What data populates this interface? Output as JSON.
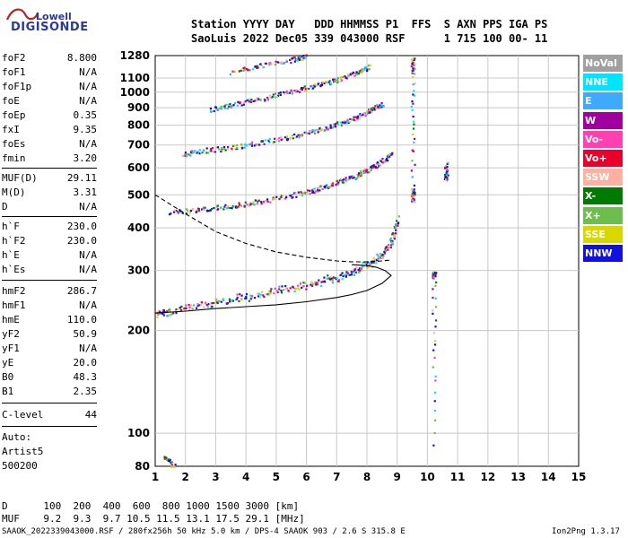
{
  "logo": {
    "top": "Lowell",
    "bottom": "DIGISONDE"
  },
  "header": {
    "line1": "Station YYYY DAY   DDD HHMMSS P1  FFS  S AXN PPS IGA PS",
    "line2": "SaoLuis 2022 Dec05 339 043000 RSF      1 715 100 00- 11"
  },
  "params": [
    {
      "label": "foF2",
      "value": "8.800"
    },
    {
      "label": "foF1",
      "value": "N/A"
    },
    {
      "label": "foF1p",
      "value": "N/A"
    },
    {
      "label": "foE",
      "value": "N/A"
    },
    {
      "label": "foEp",
      "value": "0.35"
    },
    {
      "label": "fxI",
      "value": "9.35"
    },
    {
      "label": "foEs",
      "value": "N/A"
    },
    {
      "label": "fmin",
      "value": "3.20"
    },
    {
      "label": "MUF(D)",
      "value": "29.11"
    },
    {
      "label": "M(D)",
      "value": "3.31"
    },
    {
      "label": "D",
      "value": "N/A"
    },
    {
      "label": "h`F",
      "value": "230.0"
    },
    {
      "label": "h`F2",
      "value": "230.0"
    },
    {
      "label": "h`E",
      "value": "N/A"
    },
    {
      "label": "h`Es",
      "value": "N/A"
    },
    {
      "label": "hmF2",
      "value": "286.7"
    },
    {
      "label": "hmF1",
      "value": "N/A"
    },
    {
      "label": "hmE",
      "value": "110.0"
    },
    {
      "label": "yF2",
      "value": "50.9"
    },
    {
      "label": "yF1",
      "value": "N/A"
    },
    {
      "label": "yE",
      "value": "20.0"
    },
    {
      "label": "B0",
      "value": "48.3"
    },
    {
      "label": "B1",
      "value": "2.35"
    },
    {
      "label": "C-level",
      "value": "44"
    }
  ],
  "autoscaling": {
    "label": "Auto:",
    "program": "Artist5",
    "version": "500200"
  },
  "footer": {
    "d_row": "D      100  200  400  600  800 1000 1500 3000 [km]",
    "muf_row": "MUF    9.2  9.3  9.7 10.5 11.5 13.1 17.5 29.1 [MHz]",
    "file_info": "SAAOK_2022339043000.RSF / 280fx256h 50 kHz 5.0 km / DPS-4 SAAOK 903 / 2.6 S 315.8 E",
    "version": "Ion2Png 1.3.17"
  },
  "legend": [
    {
      "label": "NoVal",
      "color": "#a0a0a0"
    },
    {
      "label": "NNE",
      "color": "#00e5ff"
    },
    {
      "label": "E",
      "color": "#3fa9ff"
    },
    {
      "label": "W",
      "color": "#a000a0"
    },
    {
      "label": "Vo-",
      "color": "#ff40b0"
    },
    {
      "label": "Vo+",
      "color": "#e8002a"
    },
    {
      "label": "SSW",
      "color": "#ffb0a0"
    },
    {
      "label": "X-",
      "color": "#007a00"
    },
    {
      "label": "X+",
      "color": "#6cbf4c"
    },
    {
      "label": "SSE",
      "color": "#d8d800"
    },
    {
      "label": "NNW",
      "color": "#1010e0"
    }
  ],
  "chart_data": {
    "type": "scatter",
    "title": "",
    "xlabel": "",
    "ylabel": "",
    "xlim": [
      1,
      15
    ],
    "x_ticks": [
      1,
      2,
      3,
      4,
      5,
      6,
      7,
      8,
      9,
      10,
      11,
      12,
      13,
      14,
      15
    ],
    "y_scale": "log",
    "ylim": [
      80,
      1280
    ],
    "y_ticks": [
      80,
      100,
      200,
      300,
      400,
      500,
      600,
      700,
      800,
      900,
      1000,
      1100,
      1280
    ],
    "grid": true,
    "series": [
      {
        "type": "trace",
        "x": [
          1.0,
          1.5,
          2.5,
          3.5,
          4.5,
          5.5,
          6.3,
          7.0,
          7.6,
          8.1,
          8.5,
          8.8,
          9.0
        ],
        "y": [
          220,
          225,
          235,
          243,
          252,
          262,
          272,
          282,
          295,
          310,
          330,
          360,
          420
        ]
      },
      {
        "type": "trace",
        "x": [
          1.5,
          2.5,
          3.5,
          4.5,
          5.5,
          6.3,
          7.0,
          7.6,
          8.1,
          8.5,
          8.8
        ],
        "y": [
          445,
          455,
          465,
          480,
          500,
          520,
          545,
          570,
          600,
          630,
          660
        ]
      },
      {
        "type": "trace",
        "x": [
          1.9,
          2.5,
          3.5,
          4.5,
          5.5,
          6.3,
          7.0,
          7.6,
          8.1,
          8.5
        ],
        "y": [
          660,
          675,
          690,
          715,
          745,
          775,
          810,
          845,
          890,
          930
        ]
      },
      {
        "type": "trace",
        "x": [
          2.8,
          3.5,
          4.5,
          5.5,
          6.3,
          7.0,
          7.6,
          8.1
        ],
        "y": [
          895,
          920,
          960,
          1010,
          1050,
          1090,
          1140,
          1200
        ]
      },
      {
        "type": "trace",
        "x": [
          3.5,
          4.5,
          5.5,
          6.0
        ],
        "y": [
          1150,
          1200,
          1250,
          1280
        ]
      },
      {
        "type": "trace",
        "x": [
          9.5,
          9.5,
          9.5,
          9.5
        ],
        "y": [
          480,
          520,
          1150,
          1260
        ]
      },
      {
        "type": "trace",
        "x": [
          10.6,
          10.6
        ],
        "y": [
          550,
          620
        ]
      },
      {
        "type": "trace",
        "x": [
          10.2,
          10.2,
          10.2
        ],
        "y": [
          290,
          295,
          85
        ]
      },
      {
        "type": "trace",
        "x": [
          1.3,
          1.6
        ],
        "y": [
          86,
          80
        ]
      },
      {
        "type": "profile",
        "style": "solid",
        "x": [
          1.0,
          2.0,
          3.0,
          4.0,
          5.0,
          6.0,
          7.0,
          7.5,
          8.0,
          8.5,
          8.8,
          8.6,
          8.3,
          8.0,
          7.5
        ],
        "y": [
          225,
          228,
          232,
          235,
          238,
          243,
          250,
          255,
          262,
          275,
          290,
          300,
          307,
          310,
          312
        ]
      },
      {
        "type": "profile",
        "style": "dashed",
        "x": [
          1.0,
          2.0,
          3.0,
          4.0,
          5.0,
          6.0,
          7.0,
          7.5,
          8.0,
          8.5,
          8.8
        ],
        "y": [
          500,
          440,
          390,
          360,
          340,
          328,
          320,
          318,
          318,
          320,
          322
        ]
      }
    ]
  }
}
